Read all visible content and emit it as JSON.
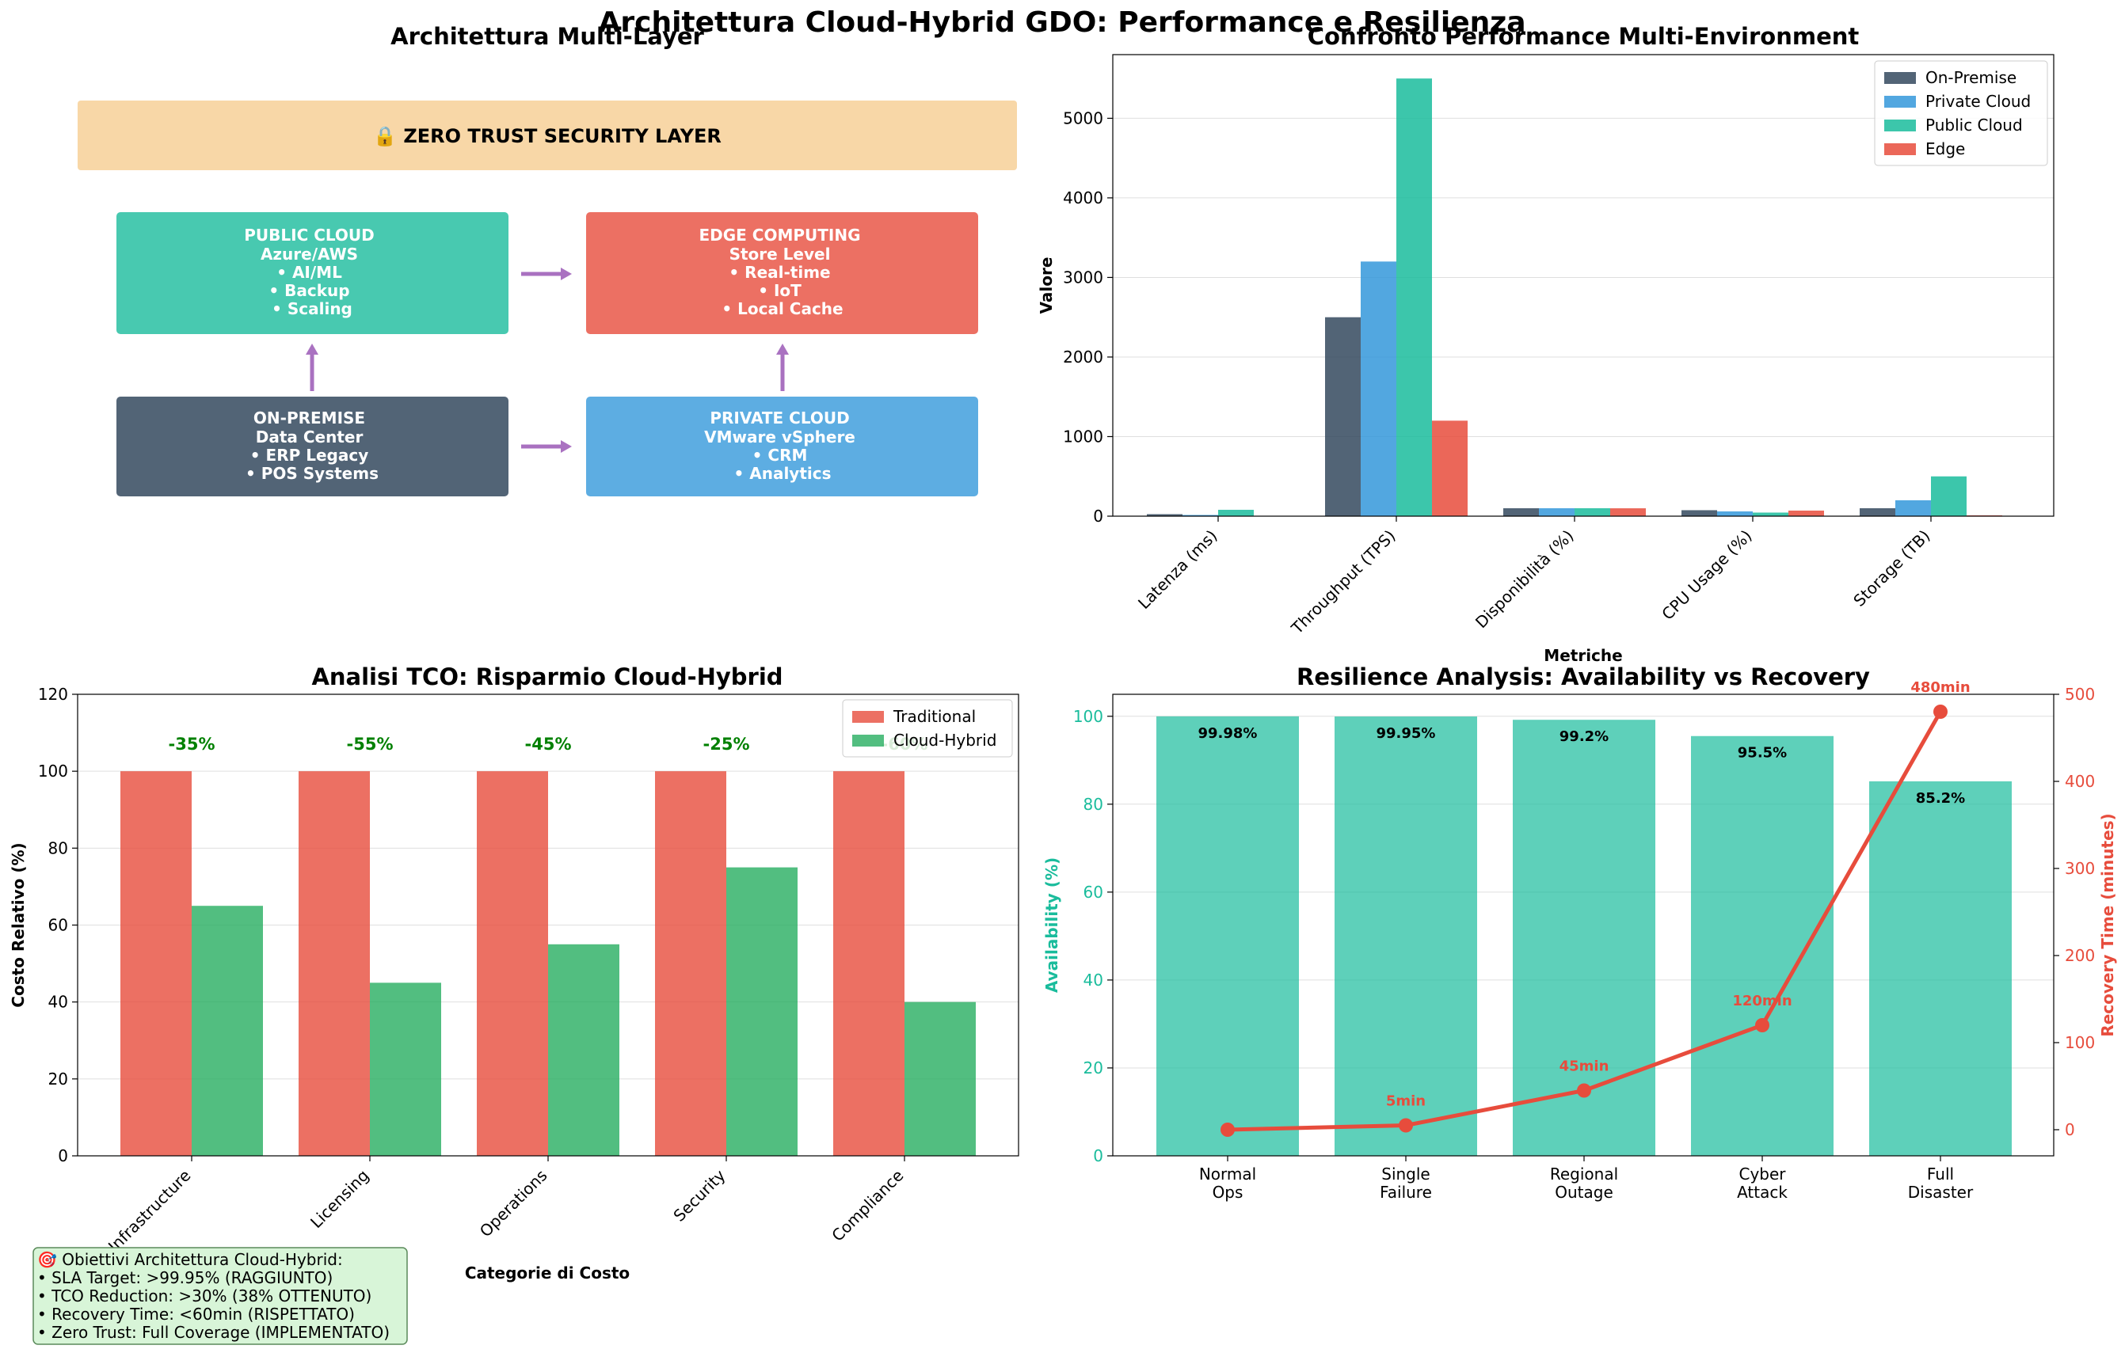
{
  "suptitle": "Architettura Cloud-Hybrid GDO: Performance e Resilienza",
  "colors": {
    "onprem": "#34495e",
    "private": "#3498db",
    "public": "#1abc9c",
    "edge": "#e74c3c",
    "green": "#27ae60",
    "arrow": "#9b59b6",
    "zt_band": "#f8d7a7",
    "note_bg": "#d8f5d8",
    "savings_text": "#008000"
  },
  "architecture": {
    "title": "Architettura Multi-Layer",
    "zero_trust": "🔒 ZERO TRUST SECURITY LAYER",
    "boxes": {
      "public": [
        "PUBLIC CLOUD",
        "Azure/AWS",
        "• AI/ML",
        "• Backup",
        "• Scaling"
      ],
      "edge": [
        "EDGE COMPUTING",
        "Store Level",
        "• Real-time",
        "• IoT",
        "• Local Cache"
      ],
      "onprem": [
        "ON-PREMISE",
        "Data Center",
        "• ERP Legacy",
        "• POS Systems"
      ],
      "private": [
        "PRIVATE CLOUD",
        "VMware vSphere",
        "• CRM",
        "• Analytics"
      ]
    }
  },
  "note": {
    "lines": [
      "🎯 Obiettivi Architettura Cloud-Hybrid:",
      "• SLA Target: >99.95% (RAGGIUNTO)",
      "• TCO Reduction: >30% (38% OTTENUTO)",
      "• Recovery Time: <60min (RISPETTATO)",
      "• Zero Trust: Full Coverage (IMPLEMENTATO)"
    ]
  },
  "chart_data": [
    {
      "type": "bar",
      "title": "Confronto Performance Multi-Environment",
      "xlabel": "Metriche",
      "ylabel": "Valore",
      "categories": [
        "Latenza (ms)",
        "Throughput (TPS)",
        "Disponibilità (%)",
        "CPU Usage (%)",
        "Storage (TB)"
      ],
      "series": [
        {
          "name": "On-Premise",
          "values": [
            25,
            2500,
            99.5,
            75,
            100
          ]
        },
        {
          "name": "Private Cloud",
          "values": [
            15,
            3200,
            99.8,
            60,
            200
          ]
        },
        {
          "name": "Public Cloud",
          "values": [
            80,
            5500,
            99.95,
            45,
            500
          ]
        },
        {
          "name": "Edge",
          "values": [
            5,
            1200,
            99.0,
            70,
            10
          ]
        }
      ],
      "ylim": [
        0,
        5800
      ],
      "yticks": [
        "0",
        "1000",
        "2000",
        "3000",
        "4000",
        "5000"
      ],
      "grid": "y",
      "legend": "top-right"
    },
    {
      "type": "bar",
      "title": "Analisi TCO: Risparmio Cloud-Hybrid",
      "xlabel": "Categorie di Costo",
      "ylabel": "Costo Relativo (%)",
      "categories": [
        "Infrastructure",
        "Licensing",
        "Operations",
        "Security",
        "Compliance"
      ],
      "series": [
        {
          "name": "Traditional",
          "values": [
            100,
            100,
            100,
            100,
            100
          ]
        },
        {
          "name": "Cloud-Hybrid",
          "values": [
            65,
            45,
            55,
            75,
            40
          ]
        }
      ],
      "annotations": [
        "-35%",
        "-55%",
        "-45%",
        "-25%",
        "-60%"
      ],
      "ylim": [
        0,
        120
      ],
      "yticks": [
        "0",
        "20",
        "40",
        "60",
        "80",
        "100",
        "120"
      ],
      "grid": "y",
      "legend": "top-right"
    },
    {
      "type": "bar",
      "title": "Resilience Analysis: Availability vs Recovery",
      "categories": [
        "Normal\nOps",
        "Single\nFailure",
        "Regional\nOutage",
        "Cyber\nAttack",
        "Full\nDisaster"
      ],
      "series": [
        {
          "name": "Availability",
          "axis": "left",
          "type": "bar",
          "values": [
            99.98,
            99.95,
            99.2,
            95.5,
            85.2
          ]
        },
        {
          "name": "Recovery Time",
          "axis": "right",
          "type": "line",
          "values": [
            0,
            5,
            45,
            120,
            480
          ]
        }
      ],
      "bar_labels": [
        "99.98%",
        "99.95%",
        "99.2%",
        "95.5%",
        "85.2%"
      ],
      "line_labels": [
        "",
        "5min",
        "45min",
        "120min",
        "480min"
      ],
      "ylabel": "Availability (%)",
      "ylabel_right": "Recovery Time (minutes)",
      "ylim": [
        0,
        105
      ],
      "yticks": [
        "0",
        "20",
        "40",
        "60",
        "80",
        "100"
      ],
      "ylim_right": [
        -30,
        500
      ],
      "yticks_right": [
        "0",
        "100",
        "200",
        "300",
        "400",
        "500"
      ],
      "grid": "y"
    }
  ]
}
